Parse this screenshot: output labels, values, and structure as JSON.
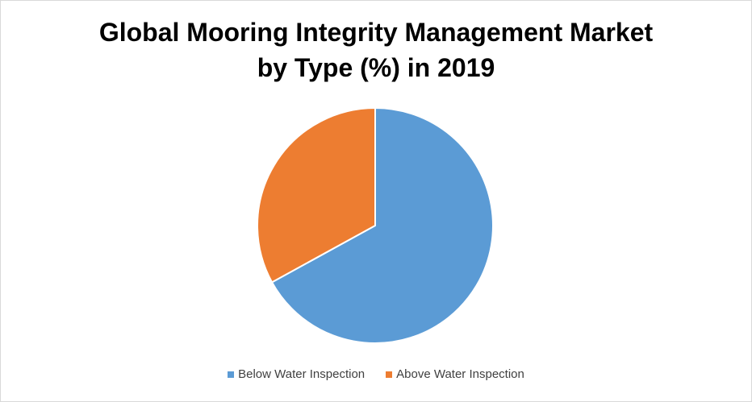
{
  "chart_data": {
    "type": "pie",
    "title_lines": [
      "Global Mooring Integrity Management Market",
      "by Type (%) in 2019"
    ],
    "slices": [
      {
        "label": "Below Water Inspection",
        "value": 67,
        "color": "#5b9bd5"
      },
      {
        "label": "Above Water Inspection",
        "value": 33,
        "color": "#ed7d31"
      }
    ],
    "start_angle_deg": 0,
    "direction": "clockwise",
    "legend_position": "bottom"
  }
}
